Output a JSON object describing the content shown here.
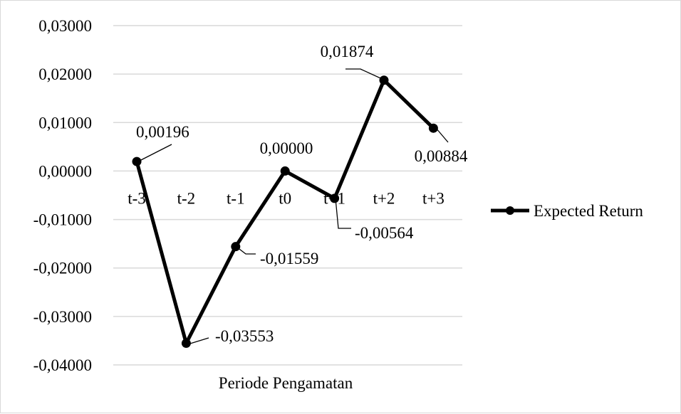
{
  "chart_data": {
    "type": "line",
    "categories": [
      "t-3",
      "t-2",
      "t-1",
      "t0",
      "t+1",
      "t+2",
      "t+3"
    ],
    "series": [
      {
        "name": "Expected Return",
        "values": [
          0.00196,
          -0.03553,
          -0.01559,
          0.0,
          -0.00564,
          0.01874,
          0.00884
        ],
        "data_labels": [
          "0,00196",
          "-0,03553",
          "-0,01559",
          "0,00000",
          "-0,00564",
          "0,01874",
          "0,00884"
        ]
      }
    ],
    "xlabel": "Periode Pengamatan",
    "ylabel": "",
    "title": "",
    "ylim": [
      -0.04,
      0.03
    ],
    "yticks": [
      0.03,
      0.02,
      0.01,
      0.0,
      -0.01,
      -0.02,
      -0.03,
      -0.04
    ],
    "ytick_labels": [
      "0,03000",
      "0,02000",
      "0,01000",
      "0,00000",
      "-0,01000",
      "-0,02000",
      "-0,03000",
      "-0,04000"
    ],
    "grid": true,
    "legend_position": "right",
    "line_color": "#000000",
    "grid_color": "#d9d9d9"
  }
}
